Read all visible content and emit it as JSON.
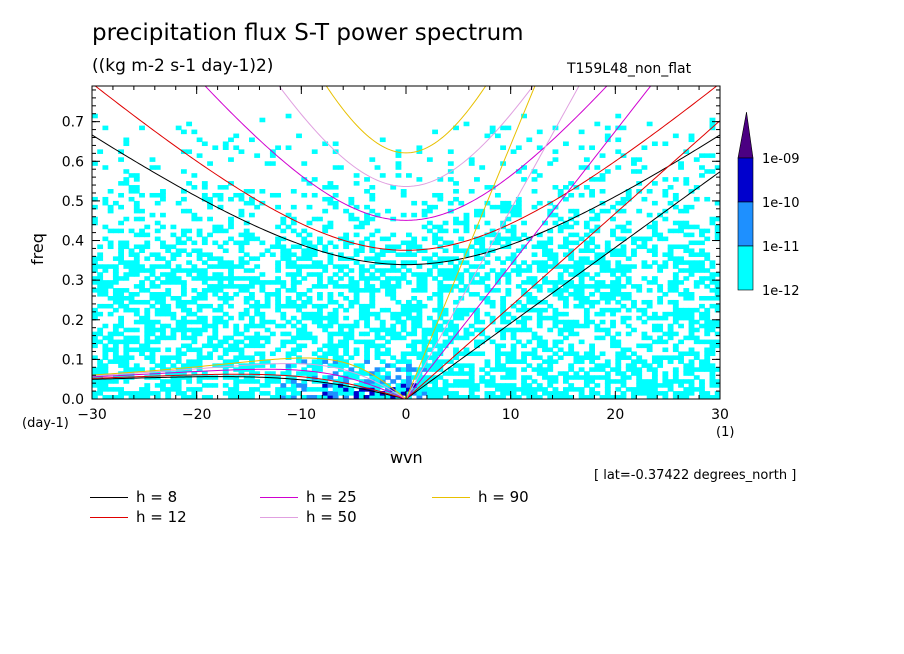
{
  "chart_data": {
    "type": "heatmap",
    "title": "precipitation flux S-T power spectrum",
    "subtitle": "((kg m-2 s-1 day-1)2)",
    "run_label": "T159L48_non_flat",
    "xlabel": "wvn",
    "ylabel": "freq",
    "y_unit_label": "(day-1)",
    "x_unit_label": "(1)",
    "annotation": "[ lat=-0.37422 degrees_north ]",
    "xlim": [
      -30,
      30
    ],
    "ylim": [
      0,
      0.79
    ],
    "x_ticks": [
      -30,
      -20,
      -10,
      0,
      10,
      20,
      30
    ],
    "x_tick_labels": [
      "-30",
      "-20",
      "-10",
      "0",
      "10",
      "20",
      "30"
    ],
    "y_ticks": [
      0,
      0.1,
      0.2,
      0.3,
      0.4,
      0.5,
      0.6,
      0.7
    ],
    "y_tick_labels": [
      "0.0",
      "0.1",
      "0.2",
      "0.3",
      "0.4",
      "0.5",
      "0.6",
      "0.7"
    ],
    "colorbar": {
      "levels": [
        "1e-12",
        "1e-11",
        "1e-10",
        "1e-09"
      ],
      "colors": [
        "#00ffff",
        "#1e90ff",
        "#0000cd",
        "#4b0082"
      ]
    },
    "series": [
      {
        "name": "h =  8",
        "color": "#000000",
        "h": 8
      },
      {
        "name": "h = 12",
        "color": "#e00000",
        "h": 12
      },
      {
        "name": "h = 25",
        "color": "#d000d0",
        "h": 25
      },
      {
        "name": "h = 50",
        "color": "#e0a0e0",
        "h": 50
      },
      {
        "name": "h = 90",
        "color": "#e8c000",
        "h": 90
      }
    ]
  }
}
